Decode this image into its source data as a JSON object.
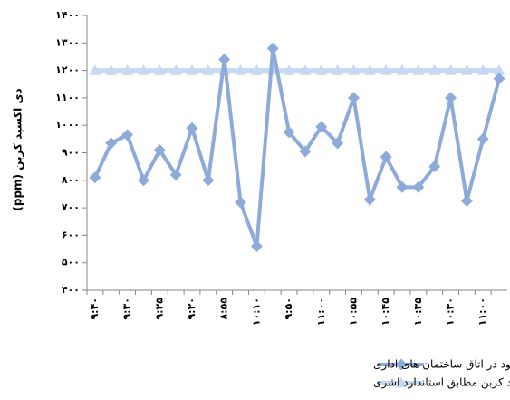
{
  "chart_data": {
    "type": "line",
    "y_label": "دی اکسید کربن (ppm)",
    "categories": [
      "۹:۴۰",
      null,
      "۹:۳۰",
      null,
      "۹:۲۵",
      null,
      "۹:۲۰",
      null,
      "۸:۵۵",
      null,
      "۱۰:۱۰",
      null,
      "۹:۵۰",
      null,
      "۱۱:۰۰",
      null,
      "۱۰:۵۵",
      null,
      "۱۰:۴۵",
      null,
      "۱۰:۳۵",
      null,
      "۱۰:۳۰",
      null,
      "۱۱:۰۰",
      null
    ],
    "series": [
      {
        "name": "میزان دی اکسید کربن موجود در اتاق  ساختمان های اداری",
        "color": "#8eaadb",
        "marker": "diamond",
        "values": [
          810,
          935,
          965,
          800,
          910,
          820,
          990,
          800,
          1240,
          720,
          560,
          1280,
          975,
          905,
          995,
          935,
          1100,
          730,
          885,
          775,
          775,
          850,
          1100,
          725,
          950,
          1170
        ]
      },
      {
        "name": "حداکثر میزان دی اکسید کربن مطابق استاندارد اشری",
        "color": "#c6d9f1",
        "marker": "triangle",
        "values": [
          1200,
          1200,
          1200,
          1200,
          1200,
          1200,
          1200,
          1200,
          1200,
          1200,
          1200,
          1200,
          1200,
          1200,
          1200,
          1200,
          1200,
          1200,
          1200,
          1200,
          1200,
          1200,
          1200,
          1200,
          1200,
          1200
        ]
      }
    ],
    "ylim": [
      400,
      1400
    ],
    "yticks": [
      {
        "value": 400,
        "label": "۴۰۰"
      },
      {
        "value": 500,
        "label": "۵۰۰"
      },
      {
        "value": 600,
        "label": "۶۰۰"
      },
      {
        "value": 700,
        "label": "۷۰۰"
      },
      {
        "value": 800,
        "label": "۸۰۰"
      },
      {
        "value": 900,
        "label": "۹۰۰"
      },
      {
        "value": 1000,
        "label": "۱۰۰۰"
      },
      {
        "value": 1100,
        "label": "۱۱۰۰"
      },
      {
        "value": 1200,
        "label": "۱۲۰۰"
      },
      {
        "value": 1300,
        "label": "۱۳۰۰"
      },
      {
        "value": 1400,
        "label": "۱۴۰۰"
      }
    ],
    "grid": false
  }
}
